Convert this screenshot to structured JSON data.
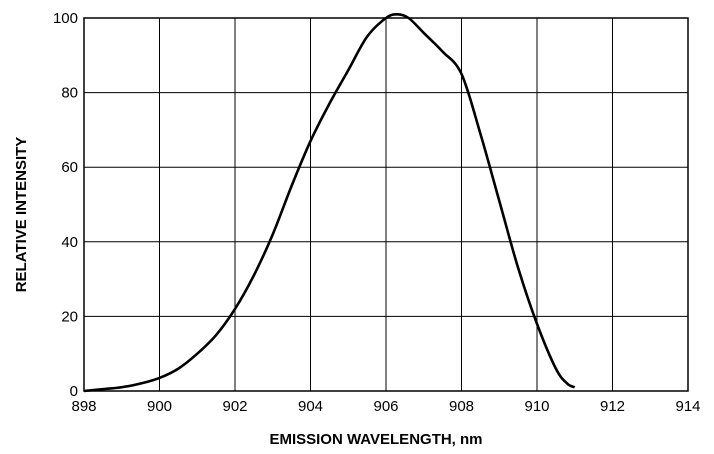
{
  "chart_data": {
    "type": "line",
    "title": "",
    "xlabel": "EMISSION WAVELENGTH, nm",
    "ylabel": "RELATIVE INTENSITY",
    "xlim": [
      898,
      914
    ],
    "ylim": [
      0,
      100
    ],
    "xticks": [
      898,
      900,
      902,
      904,
      906,
      908,
      910,
      912,
      914
    ],
    "yticks": [
      0,
      20,
      40,
      60,
      80,
      100
    ],
    "xtick_labels": [
      "898",
      "900",
      "902",
      "904",
      "906",
      "908",
      "910",
      "912",
      "914"
    ],
    "ytick_labels": [
      "0",
      "20",
      "40",
      "60",
      "80",
      "100"
    ],
    "grid": true,
    "legend": "none",
    "series": [
      {
        "x": [
          898,
          898.5,
          899,
          899.5,
          900,
          900.5,
          901,
          901.5,
          902,
          902.5,
          903,
          903.5,
          904,
          904.5,
          905,
          905.5,
          906,
          906.3,
          906.6,
          907,
          907.5,
          908,
          908.5,
          909,
          909.5,
          910,
          910.5,
          910.8,
          911
        ],
        "y": [
          0,
          0.5,
          1,
          2,
          3.5,
          6,
          10,
          15,
          22,
          31,
          42,
          55,
          67,
          77,
          86,
          95,
          100,
          101,
          100,
          96,
          91,
          85,
          69,
          51,
          33,
          18,
          6,
          2,
          1
        ]
      }
    ],
    "line_color": "#000000"
  }
}
